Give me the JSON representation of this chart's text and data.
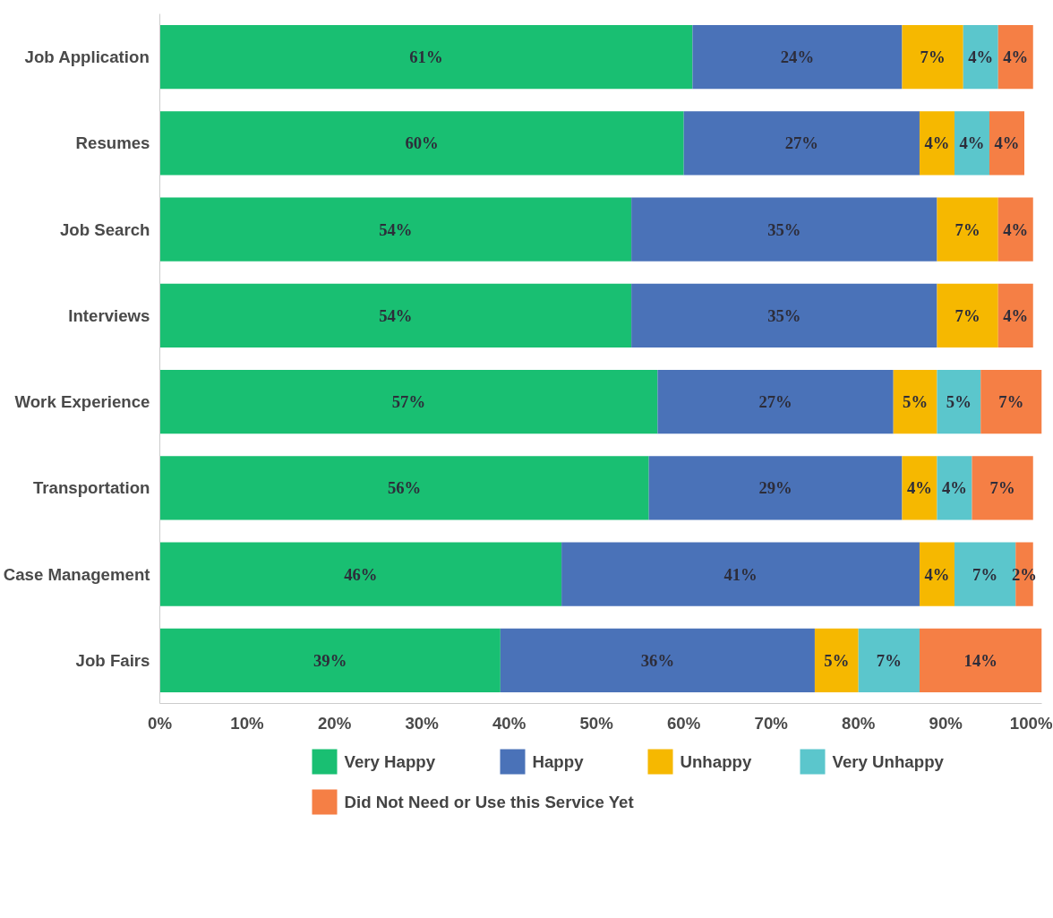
{
  "chart_data": {
    "type": "bar",
    "orientation": "horizontal",
    "stacked": true,
    "legend": "bottom",
    "grid": false,
    "categories": [
      "Job Application",
      "Resumes",
      "Job Search",
      "Interviews",
      "Work Experience",
      "Transportation",
      "Case Management",
      "Job Fairs"
    ],
    "xlim": [
      0,
      101
    ],
    "xticks": [
      {
        "value": 0,
        "label": "0%"
      },
      {
        "value": 10,
        "label": "10%"
      },
      {
        "value": 20,
        "label": "20%"
      },
      {
        "value": 30,
        "label": "30%"
      },
      {
        "value": 40,
        "label": "40%"
      },
      {
        "value": 50,
        "label": "50%"
      },
      {
        "value": 60,
        "label": "60%"
      },
      {
        "value": 70,
        "label": "70%"
      },
      {
        "value": 80,
        "label": "80%"
      },
      {
        "value": 90,
        "label": "90%"
      },
      {
        "value": 100,
        "label": "100%"
      }
    ],
    "series": [
      {
        "name": "Very Happy",
        "color": "#19bf72",
        "values": [
          61,
          60,
          54,
          54,
          57,
          56,
          46,
          39
        ],
        "value_labels": [
          "61%",
          "60%",
          "54%",
          "54%",
          "57%",
          "56%",
          "46%",
          "39%"
        ]
      },
      {
        "name": "Happy",
        "color": "#4a72b8",
        "values": [
          24,
          27,
          35,
          35,
          27,
          29,
          41,
          36
        ],
        "value_labels": [
          "24%",
          "27%",
          "35%",
          "35%",
          "27%",
          "29%",
          "41%",
          "36%"
        ]
      },
      {
        "name": "Unhappy",
        "color": "#f6b800",
        "values": [
          7,
          4,
          7,
          7,
          5,
          4,
          4,
          5
        ],
        "value_labels": [
          "7%",
          "4%",
          "7%",
          "7%",
          "5%",
          "4%",
          "4%",
          "5%"
        ]
      },
      {
        "name": "Very Unhappy",
        "color": "#5bc6cc",
        "values": [
          4,
          4,
          null,
          null,
          5,
          4,
          7,
          7
        ],
        "value_labels": [
          "4%",
          "4%",
          null,
          null,
          "5%",
          "4%",
          "7%",
          "7%"
        ]
      },
      {
        "name": "Did Not Need or Use this Service Yet",
        "color": "#f57f45",
        "values": [
          4,
          4,
          4,
          4,
          7,
          7,
          2,
          14
        ],
        "value_labels": [
          "4%",
          "4%",
          "4%",
          "4%",
          "7%",
          "7%",
          "2%",
          "14%"
        ]
      }
    ]
  }
}
